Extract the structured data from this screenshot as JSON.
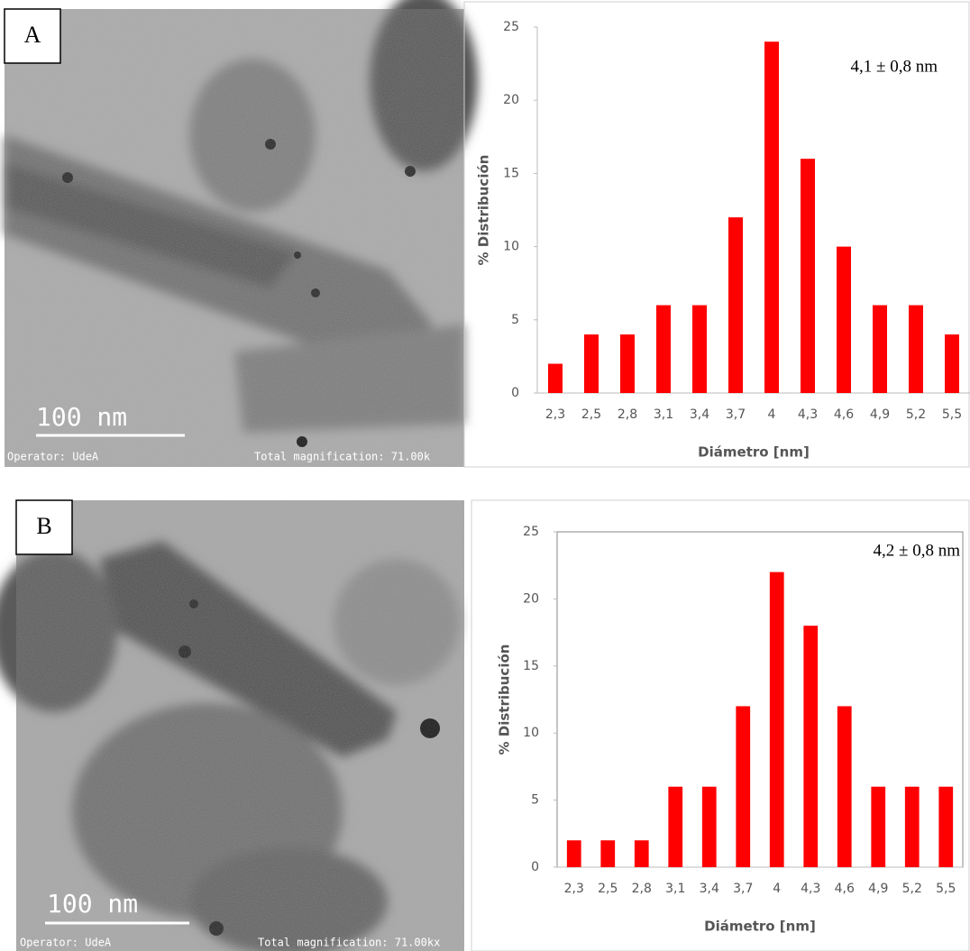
{
  "panels": [
    {
      "label": "A",
      "scale_bar": "100 nm",
      "operator": "Operator: UdeA",
      "magnification": "Total magnification: 71.00k"
    },
    {
      "label": "B",
      "scale_bar": "100 nm",
      "operator": "Operator: UdeA",
      "magnification": "Total magnification: 71.00kx"
    }
  ],
  "chart_data": [
    {
      "type": "bar",
      "annotation": "4,1 ± 0,8 nm",
      "x_label": "Diámetro [nm]",
      "y_label": "% Distribución",
      "categories": [
        "2,3",
        "2,5",
        "2,8",
        "3,1",
        "3,4",
        "3,7",
        "4",
        "4,3",
        "4,6",
        "4,9",
        "5,2",
        "5,5"
      ],
      "values": [
        2,
        4,
        4,
        6,
        6,
        12,
        24,
        16,
        10,
        6,
        6,
        4
      ],
      "color": "#ff0000",
      "ylim": [
        0,
        25
      ],
      "yticks": [
        0,
        5,
        10,
        15,
        20,
        25
      ],
      "grid": false
    },
    {
      "type": "bar",
      "annotation": "4,2 ± 0,8 nm",
      "x_label": "Diámetro [nm]",
      "y_label": "% Distribución",
      "categories": [
        "2,3",
        "2,5",
        "2,8",
        "3,1",
        "3,4",
        "3,7",
        "4",
        "4,3",
        "4,6",
        "4,9",
        "5,2",
        "5,5"
      ],
      "values": [
        2,
        2,
        2,
        6,
        6,
        12,
        22,
        18,
        12,
        6,
        6,
        6
      ],
      "color": "#ff0000",
      "ylim": [
        0,
        25
      ],
      "yticks": [
        0,
        5,
        10,
        15,
        20,
        25
      ],
      "grid": false
    }
  ]
}
